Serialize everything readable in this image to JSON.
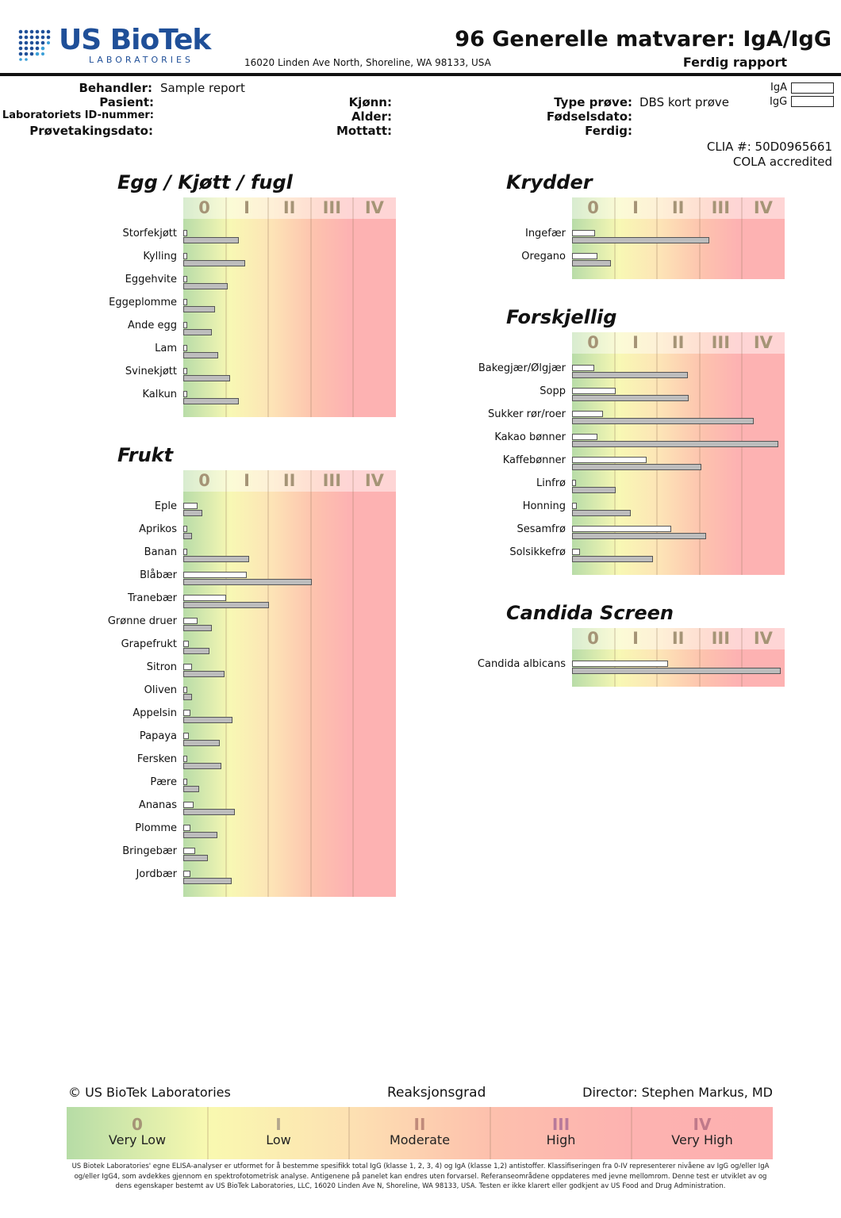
{
  "header": {
    "logo_text": "US BioTek",
    "logo_subtext": "LABORATORIES",
    "address": "16020 Linden Ave North, Shoreline, WA 98133, USA",
    "title": "96 Generelle matvarer: IgA/IgG",
    "status": "Ferdig rapport"
  },
  "patient_info": {
    "provider_label": "Behandler:",
    "provider_value": "Sample report",
    "patient_label": "Pasient:",
    "lab_id_label": "Laboratoriets ID-nummer:",
    "collection_date_label": "Prøvetakingsdato:",
    "sex_label": "Kjønn:",
    "age_label": "Alder:",
    "received_label": "Mottatt:",
    "sample_type_label": "Type prøve:",
    "sample_type_value": "DBS kort prøve",
    "dob_label": "Fødselsdato:",
    "completed_label": "Ferdig:"
  },
  "legend": {
    "iga": "IgA",
    "igg": "IgG",
    "iga_color": "#ffffff",
    "igg_color": "#bdbdbd"
  },
  "accreditation": {
    "clia": "CLIA #: 50D0965661",
    "cola": "COLA accredited"
  },
  "colors": {
    "class0": "#b8dca8",
    "classI": "#f8f8b4",
    "classII": "#fde3b6",
    "classIII": "#fdc2ae",
    "classIV": "#fdb2b2",
    "class_label_color": "#a59476"
  },
  "chart_data": [
    {
      "type": "bar",
      "title": "Egg / Kjøtt / fugl",
      "scale_labels": [
        "0",
        "I",
        "II",
        "III",
        "IV"
      ],
      "xlim": [
        0,
        5
      ],
      "categories": [
        "Storfekjøtt",
        "Kylling",
        "Eggehvite",
        "Eggeplomme",
        "Ande egg",
        "Lam",
        "Svinekjøtt",
        "Kalkun"
      ],
      "series": [
        {
          "name": "IgA",
          "values": [
            0.1,
            0.1,
            0.1,
            0.1,
            0.1,
            0.1,
            0.1,
            0.1
          ]
        },
        {
          "name": "IgG",
          "values": [
            1.3,
            1.45,
            1.05,
            0.75,
            0.68,
            0.83,
            1.1,
            1.3
          ]
        }
      ]
    },
    {
      "type": "bar",
      "title": "Frukt",
      "scale_labels": [
        "0",
        "I",
        "II",
        "III",
        "IV"
      ],
      "xlim": [
        0,
        5
      ],
      "categories": [
        "Eple",
        "Aprikos",
        "Banan",
        "Blåbær",
        "Tranebær",
        "Grønne druer",
        "Grapefrukt",
        "Sitron",
        "Oliven",
        "Appelsin",
        "Papaya",
        "Fersken",
        "Pære",
        "Ananas",
        "Plomme",
        "Bringebær",
        "Jordbær"
      ],
      "series": [
        {
          "name": "IgA",
          "values": [
            0.33,
            0.1,
            0.1,
            1.5,
            1.0,
            0.33,
            0.13,
            0.2,
            0.1,
            0.16,
            0.13,
            0.1,
            0.1,
            0.24,
            0.17,
            0.28,
            0.16
          ]
        },
        {
          "name": "IgG",
          "values": [
            0.45,
            0.2,
            1.55,
            3.02,
            2.02,
            0.68,
            0.62,
            0.97,
            0.2,
            1.15,
            0.85,
            0.9,
            0.38,
            1.22,
            0.8,
            0.58,
            1.13
          ]
        }
      ]
    },
    {
      "type": "bar",
      "title": "Krydder",
      "scale_labels": [
        "0",
        "I",
        "II",
        "III",
        "IV"
      ],
      "xlim": [
        0,
        5
      ],
      "categories": [
        "Ingefær",
        "Oregano"
      ],
      "series": [
        {
          "name": "IgA",
          "values": [
            0.55,
            0.6
          ]
        },
        {
          "name": "IgG",
          "values": [
            3.22,
            0.92
          ]
        }
      ]
    },
    {
      "type": "bar",
      "title": "Forskjellig",
      "scale_labels": [
        "0",
        "I",
        "II",
        "III",
        "IV"
      ],
      "xlim": [
        0,
        5
      ],
      "categories": [
        "Bakegjær/Ølgjær",
        "Sopp",
        "Sukker rør/roer",
        "Kakao bønner",
        "Kaffebønner",
        "Linfrø",
        "Honning",
        "Sesamfrø",
        "Solsikkefrø"
      ],
      "series": [
        {
          "name": "IgA",
          "values": [
            0.52,
            1.02,
            0.72,
            0.6,
            1.75,
            0.1,
            0.12,
            2.33,
            0.18
          ]
        },
        {
          "name": "IgG",
          "values": [
            2.72,
            2.75,
            4.28,
            4.86,
            3.05,
            1.02,
            1.38,
            3.15,
            1.9
          ]
        }
      ]
    },
    {
      "type": "bar",
      "title": "Candida Screen",
      "scale_labels": [
        "0",
        "I",
        "II",
        "III",
        "IV"
      ],
      "xlim": [
        0,
        5
      ],
      "categories": [
        "Candida albicans"
      ],
      "series": [
        {
          "name": "IgA",
          "values": [
            2.25
          ]
        },
        {
          "name": "IgG",
          "values": [
            4.9
          ]
        }
      ]
    }
  ],
  "footer": {
    "copyright": "© US BioTek Laboratories",
    "reaction_title": "Reaksjonsgrad",
    "director": "Director: Stephen Markus, MD",
    "scale": [
      {
        "num": "0",
        "word": "Very Low",
        "color": "#a59476"
      },
      {
        "num": "I",
        "word": "Low",
        "color": "#b3a68d"
      },
      {
        "num": "II",
        "word": "Moderate",
        "color": "#c08a7a"
      },
      {
        "num": "III",
        "word": "High",
        "color": "#b87a9a"
      },
      {
        "num": "IV",
        "word": "Very High",
        "color": "#c07a8a"
      }
    ],
    "disclaimer": "US Biotek Laboratories' egne ELISA-analyser er utformet for å bestemme spesifikk total IgG (klasse 1, 2, 3, 4) og IgA (klasse 1,2) antistoffer. Klassifiseringen fra 0-IV representerer nivåene av IgG og/eller IgA og/eller IgG4, som avdekkes gjennom en spektrofotometrisk analyse. Antigenene på panelet kan endres uten forvarsel. Referanseområdene oppdateres med jevne mellomrom. Denne test er utviklet av og dens egenskaper bestemt av US BioTek Laboratories, LLC, 16020 Linden Ave N, Shoreline, WA 98133, USA. Testen er ikke klarert eller godkjent av US Food and Drug Administration."
  }
}
